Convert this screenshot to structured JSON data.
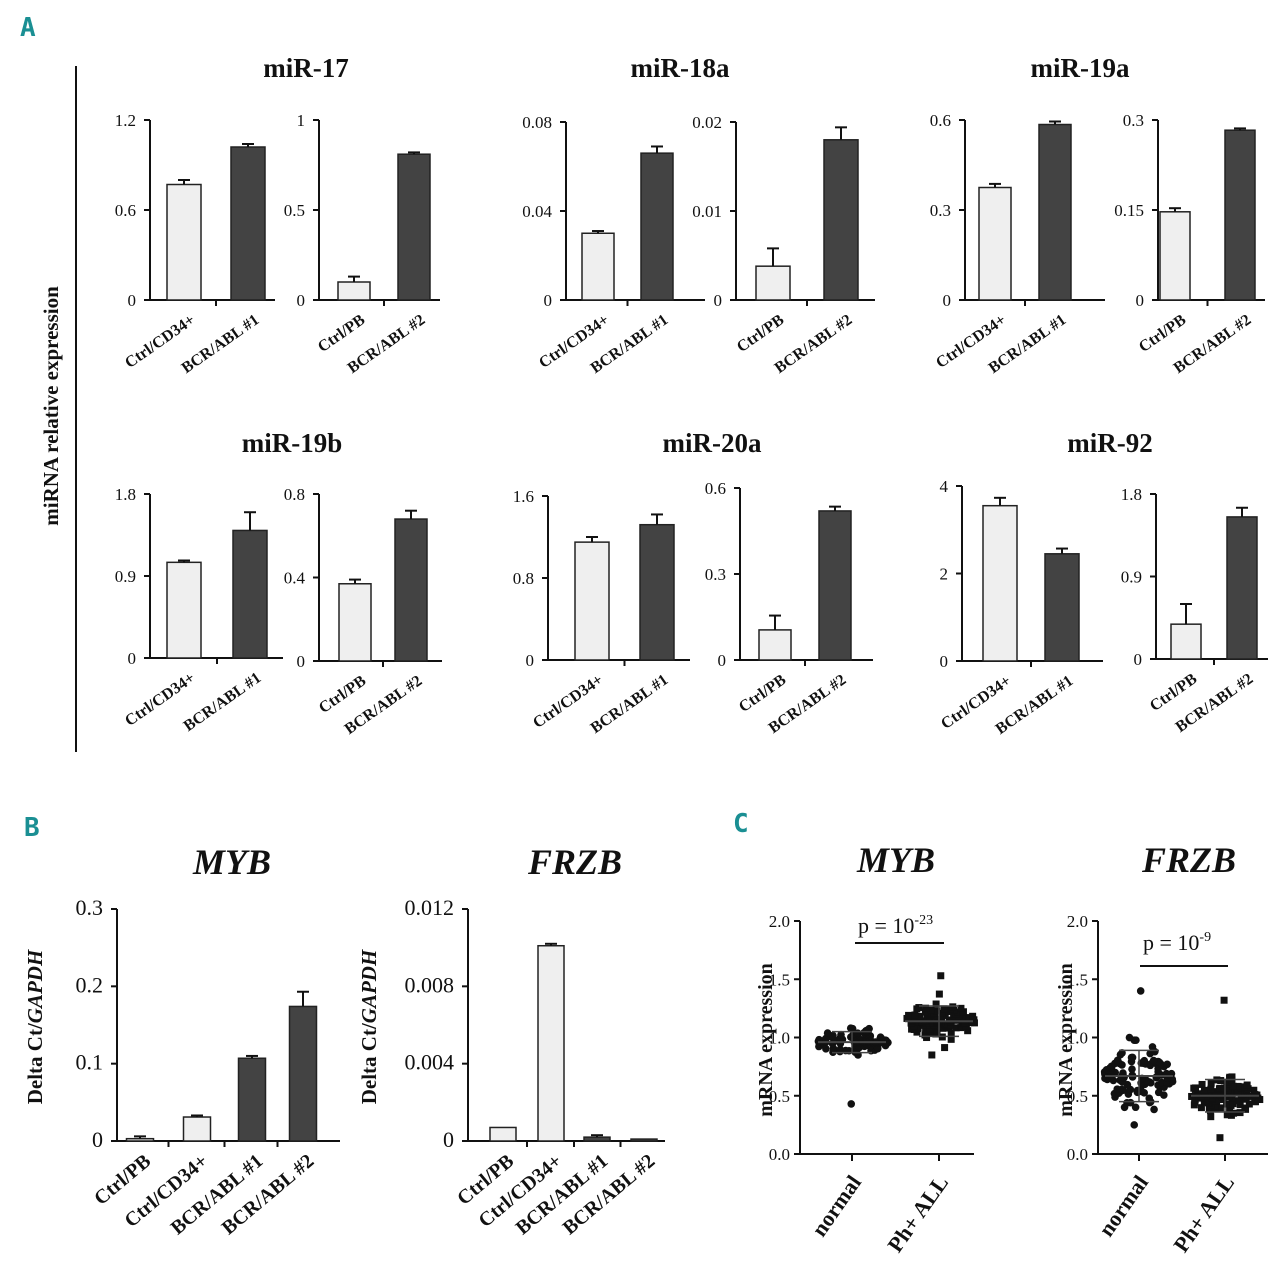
{
  "panels": {
    "a": "A",
    "b": "B",
    "c": "C"
  },
  "shared_ylabel_a": "miRNA relative expression",
  "colors": {
    "light": "#efefef",
    "dark": "#434343",
    "stroke": "#222222"
  },
  "chart_data": [
    {
      "id": "a1",
      "type": "bar",
      "group": "miR-17",
      "title": "miR-17",
      "categories": [
        "Ctrl/CD34+",
        "BCR/ABL #1"
      ],
      "values": [
        0.77,
        1.02
      ],
      "errors": [
        0.03,
        0.02
      ],
      "ylim": [
        0,
        1.2
      ],
      "yticks": [
        "0",
        "0.6",
        "1.2"
      ]
    },
    {
      "id": "a2",
      "type": "bar",
      "group": "miR-17",
      "title": "",
      "categories": [
        "Ctrl/PB",
        "BCR/ABL #2"
      ],
      "values": [
        0.1,
        0.81
      ],
      "errors": [
        0.03,
        0.01
      ],
      "ylim": [
        0,
        1
      ],
      "yticks": [
        "0",
        "0.5",
        "1"
      ]
    },
    {
      "id": "a3",
      "type": "bar",
      "group": "miR-18a",
      "title": "miR-18a",
      "categories": [
        "Ctrl/CD34+",
        "BCR/ABL #1"
      ],
      "values": [
        0.03,
        0.066
      ],
      "errors": [
        0.001,
        0.003
      ],
      "ylim": [
        0,
        0.08
      ],
      "yticks": [
        "0",
        "0.04",
        "0.08"
      ]
    },
    {
      "id": "a4",
      "type": "bar",
      "group": "miR-18a",
      "title": "",
      "categories": [
        "Ctrl/PB",
        "BCR/ABL #2"
      ],
      "values": [
        0.0038,
        0.018
      ],
      "errors": [
        0.002,
        0.0014
      ],
      "ylim": [
        0,
        0.02
      ],
      "yticks": [
        "0",
        "0.01",
        "0.02"
      ]
    },
    {
      "id": "a5",
      "type": "bar",
      "group": "miR-19a",
      "title": "miR-19a",
      "categories": [
        "Ctrl/CD34+",
        "BCR/ABL #1"
      ],
      "values": [
        0.375,
        0.585
      ],
      "errors": [
        0.012,
        0.01
      ],
      "ylim": [
        0,
        0.6
      ],
      "yticks": [
        "0",
        "0.3",
        "0.6"
      ]
    },
    {
      "id": "a6",
      "type": "bar",
      "group": "miR-19a",
      "title": "",
      "categories": [
        "Ctrl/PB",
        "BCR/ABL #2"
      ],
      "values": [
        0.147,
        0.283
      ],
      "errors": [
        0.006,
        0.003
      ],
      "ylim": [
        0,
        0.3
      ],
      "yticks": [
        "0",
        "0.15",
        "0.3"
      ]
    },
    {
      "id": "a7",
      "type": "bar",
      "group": "miR-19b",
      "title": "miR-19b",
      "categories": [
        "Ctrl/CD34+",
        "BCR/ABL #1"
      ],
      "values": [
        1.05,
        1.4
      ],
      "errors": [
        0.02,
        0.2
      ],
      "ylim": [
        0,
        1.8
      ],
      "yticks": [
        "0",
        "0.9",
        "1.8"
      ]
    },
    {
      "id": "a8",
      "type": "bar",
      "group": "miR-19b",
      "title": "",
      "categories": [
        "Ctrl/PB",
        "BCR/ABL #2"
      ],
      "values": [
        0.37,
        0.68
      ],
      "errors": [
        0.02,
        0.04
      ],
      "ylim": [
        0,
        0.8
      ],
      "yticks": [
        "0",
        "0.4",
        "0.8"
      ]
    },
    {
      "id": "a9",
      "type": "bar",
      "group": "miR-20a",
      "title": "miR-20a",
      "categories": [
        "Ctrl/CD34+",
        "BCR/ABL #1"
      ],
      "values": [
        1.15,
        1.32
      ],
      "errors": [
        0.05,
        0.1
      ],
      "ylim": [
        0,
        1.6
      ],
      "yticks": [
        "0",
        "0.8",
        "1.6"
      ]
    },
    {
      "id": "a10",
      "type": "bar",
      "group": "miR-20a",
      "title": "",
      "categories": [
        "Ctrl/PB",
        "BCR/ABL #2"
      ],
      "values": [
        0.105,
        0.52
      ],
      "errors": [
        0.05,
        0.015
      ],
      "ylim": [
        0,
        0.6
      ],
      "yticks": [
        "0",
        "0.3",
        "0.6"
      ]
    },
    {
      "id": "a11",
      "type": "bar",
      "group": "miR-92",
      "title": "miR-92",
      "categories": [
        "Ctrl/CD34+",
        "BCR/ABL #1"
      ],
      "values": [
        3.55,
        2.45
      ],
      "errors": [
        0.18,
        0.12
      ],
      "ylim": [
        0,
        4
      ],
      "yticks": [
        "0",
        "2",
        "4"
      ]
    },
    {
      "id": "a12",
      "type": "bar",
      "group": "miR-92",
      "title": "",
      "categories": [
        "Ctrl/PB",
        "BCR/ABL #2"
      ],
      "values": [
        0.38,
        1.55
      ],
      "errors": [
        0.22,
        0.1
      ],
      "ylim": [
        0,
        1.8
      ],
      "yticks": [
        "0",
        "0.9",
        "1.8"
      ]
    },
    {
      "id": "b1",
      "type": "bar",
      "title": "MYB",
      "ylabel_prefix": "Delta Ct/",
      "ylabel_gene": "GAPDH",
      "categories": [
        "Ctrl/PB",
        "Ctrl/CD34+",
        "BCR/ABL #1",
        "BCR/ABL #2"
      ],
      "values": [
        0.003,
        0.031,
        0.107,
        0.174
      ],
      "errors": [
        0.003,
        0.002,
        0.003,
        0.019
      ],
      "ylim": [
        0,
        0.3
      ],
      "yticks": [
        "0",
        "0.1",
        "0.2",
        "0.3"
      ]
    },
    {
      "id": "b2",
      "type": "bar",
      "title": "FRZB",
      "ylabel_prefix": "Delta Ct/",
      "ylabel_gene": "GAPDH",
      "categories": [
        "Ctrl/PB",
        "Ctrl/CD34+",
        "BCR/ABL #1",
        "BCR/ABL #2"
      ],
      "values": [
        0.0007,
        0.0101,
        0.0002,
        0.0001
      ],
      "errors": [
        0,
        0.0001,
        0.0001,
        0
      ],
      "ylim": [
        0,
        0.012
      ],
      "yticks": [
        "0",
        "0.004",
        "0.008",
        "0.012"
      ]
    },
    {
      "id": "c1",
      "type": "scatter",
      "title": "MYB",
      "ylabel": "mRNA expression",
      "categories": [
        "normal",
        "Ph+ ALL"
      ],
      "means": [
        0.96,
        1.14
      ],
      "sds": [
        0.09,
        0.13
      ],
      "ranges": [
        [
          0.43,
          1.08
        ],
        [
          0.85,
          1.53
        ]
      ],
      "ylim": [
        0,
        2.0
      ],
      "yticks": [
        "0.0",
        "0.5",
        "1.0",
        "1.5",
        "2.0"
      ],
      "p_base": "p = 10",
      "p_exp": "-23"
    },
    {
      "id": "c2",
      "type": "scatter",
      "title": "FRZB",
      "ylabel": "mRNA expression",
      "categories": [
        "normal",
        "Ph+ ALL"
      ],
      "means": [
        0.67,
        0.5
      ],
      "sds": [
        0.22,
        0.14
      ],
      "ranges": [
        [
          0.25,
          1.4
        ],
        [
          0.14,
          1.32
        ]
      ],
      "ylim": [
        0,
        2.0
      ],
      "yticks": [
        "0.0",
        "0.5",
        "1.0",
        "1.5",
        "2.0"
      ],
      "p_base": "p = 10",
      "p_exp": "-9"
    }
  ]
}
